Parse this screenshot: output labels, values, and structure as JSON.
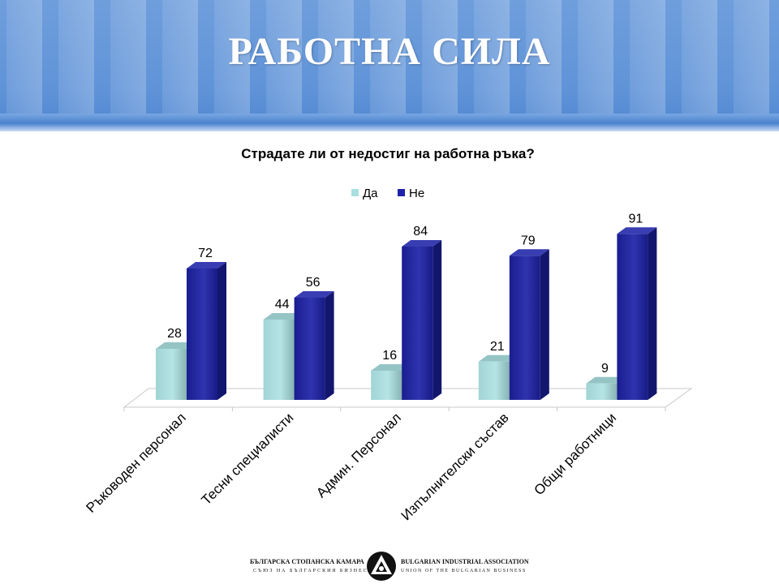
{
  "slide": {
    "title": "РАБОТНА СИЛА"
  },
  "chart_data": {
    "type": "bar",
    "title": "Страдате ли от недостиг на работна ръка?",
    "categories": [
      "Ръководен персонал",
      "Тесни специалисти",
      "Админ. Персонал",
      "Изпълнителски състав",
      "Общи работници"
    ],
    "series": [
      {
        "name": "Да",
        "values": [
          28,
          44,
          16,
          21,
          9
        ],
        "color": "#a9dfe0"
      },
      {
        "name": "Не",
        "values": [
          72,
          56,
          84,
          79,
          91
        ],
        "color": "#1d22a8"
      }
    ],
    "ylim": [
      0,
      100
    ],
    "grid": false,
    "legend": "top",
    "data_labels": true
  },
  "footer": {
    "org_bg": "БЪЛГАРСКА СТОПАНСКА КАМАРА",
    "org_bg_sub": "СЪЮЗ НА БЪЛГАРСКИЯ БИЗНЕС",
    "org_en": "BULGARIAN INDUSTRIAL ASSOCIATION",
    "org_en_sub": "UNION OF THE BULGARIAN BUSINESS"
  }
}
